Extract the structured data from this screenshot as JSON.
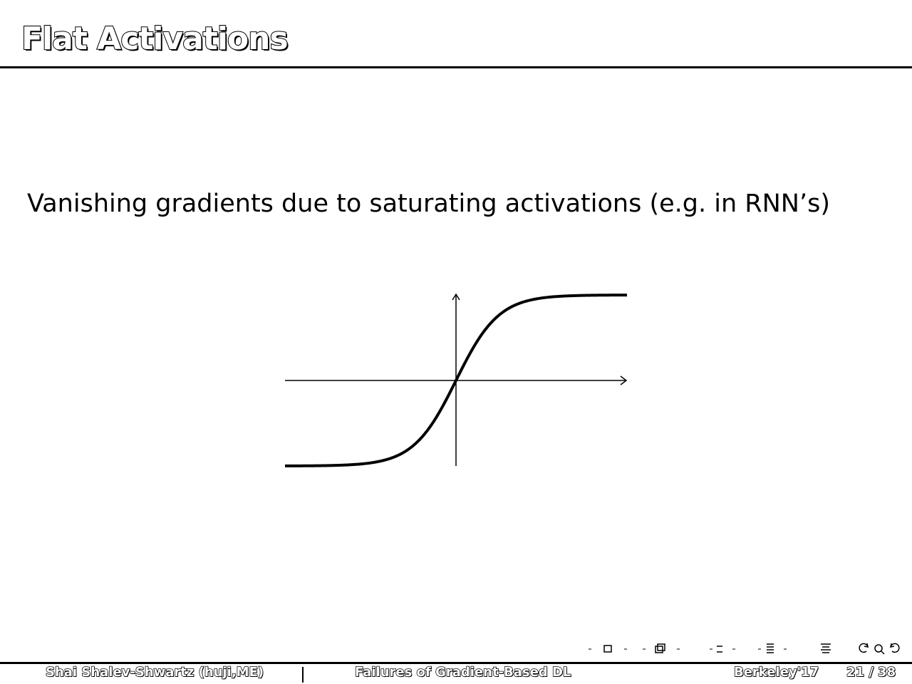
{
  "slide": {
    "title": "Flat Activations",
    "body": "Vanishing gradients due to saturating activations (e.g. in RNN’s)"
  },
  "figure": {
    "curve": "tanh",
    "x_range": [
      -4,
      4
    ],
    "y_range": [
      -1,
      1
    ],
    "icons": [
      "x-axis-arrow-icon",
      "y-axis-arrow-icon"
    ]
  },
  "nav": {
    "icons": [
      "nav-frame-icon",
      "nav-subsection-icon",
      "nav-section-icon",
      "nav-slide-icon",
      "nav-align-icon",
      "nav-back-icon",
      "nav-search-icon",
      "nav-forward-icon"
    ]
  },
  "footer": {
    "author": "Shai Shalev-Shwartz  (huji,ME)",
    "talk_title": "Failures of Gradient-Based DL",
    "venue": "Berkeley'17",
    "page": "21 / 38"
  }
}
